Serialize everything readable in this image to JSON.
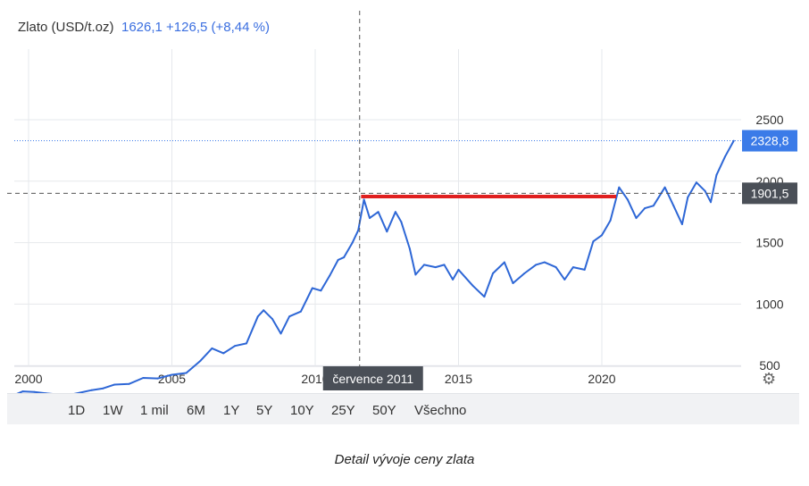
{
  "header": {
    "title": "Zlato (USD/t.oz)",
    "stats": "1626,1 +126,5 (+8,44 %)"
  },
  "crosshair": {
    "date_label": "července 2011",
    "price_label": "1901,5",
    "price_value": 1901.5,
    "x_value": 2011.55
  },
  "last_price": {
    "label": "2328,8",
    "value": 2328.8
  },
  "highlight_line": {
    "x_start": 2011.6,
    "x_end": 2020.5,
    "y": 1875,
    "color": "#e02020"
  },
  "ranges": [
    "1D",
    "1W",
    "1 mil",
    "6M",
    "1Y",
    "5Y",
    "10Y",
    "25Y",
    "50Y",
    "Všechno"
  ],
  "caption": "Detail vývoje ceny zlata",
  "colors": {
    "line": "#2e67d6",
    "last_bg": "#3b7be8",
    "crosshair_bg": "#4a4f57"
  },
  "icons": {
    "settings": "gear-icon"
  },
  "chart_data": {
    "type": "line",
    "title": "Zlato (USD/t.oz)",
    "xlabel": "",
    "ylabel": "",
    "xlim": [
      1999.5,
      2024.9
    ],
    "ylim": [
      0,
      2500
    ],
    "x_ticks": [
      2000,
      2005,
      2010,
      2015,
      2020
    ],
    "x_tick_labels": [
      "2000",
      "2005",
      "2010",
      "2015",
      "2020"
    ],
    "y_ticks": [
      500,
      1000,
      1500,
      2000,
      2500
    ],
    "y_tick_labels": [
      "500",
      "1000",
      "1500",
      "2000",
      "2500"
    ],
    "grid": true,
    "series": [
      {
        "values": [
          [
            1999.5,
            260
          ],
          [
            1999.8,
            290
          ],
          [
            2000.2,
            285
          ],
          [
            2000.6,
            275
          ],
          [
            2001.0,
            265
          ],
          [
            2001.4,
            260
          ],
          [
            2001.8,
            280
          ],
          [
            2002.2,
            300
          ],
          [
            2002.6,
            315
          ],
          [
            2003.0,
            345
          ],
          [
            2003.5,
            350
          ],
          [
            2004.0,
            400
          ],
          [
            2004.5,
            395
          ],
          [
            2005.0,
            425
          ],
          [
            2005.5,
            440
          ],
          [
            2006.0,
            540
          ],
          [
            2006.4,
            640
          ],
          [
            2006.8,
            600
          ],
          [
            2007.2,
            660
          ],
          [
            2007.6,
            680
          ],
          [
            2008.0,
            900
          ],
          [
            2008.2,
            950
          ],
          [
            2008.5,
            880
          ],
          [
            2008.8,
            760
          ],
          [
            2009.1,
            900
          ],
          [
            2009.5,
            940
          ],
          [
            2009.9,
            1130
          ],
          [
            2010.2,
            1110
          ],
          [
            2010.5,
            1230
          ],
          [
            2010.8,
            1360
          ],
          [
            2011.0,
            1380
          ],
          [
            2011.3,
            1500
          ],
          [
            2011.5,
            1600
          ],
          [
            2011.7,
            1850
          ],
          [
            2011.9,
            1700
          ],
          [
            2012.2,
            1750
          ],
          [
            2012.5,
            1590
          ],
          [
            2012.8,
            1750
          ],
          [
            2013.0,
            1670
          ],
          [
            2013.3,
            1450
          ],
          [
            2013.5,
            1240
          ],
          [
            2013.8,
            1320
          ],
          [
            2014.2,
            1300
          ],
          [
            2014.5,
            1320
          ],
          [
            2014.8,
            1200
          ],
          [
            2015.0,
            1280
          ],
          [
            2015.5,
            1150
          ],
          [
            2015.9,
            1060
          ],
          [
            2016.2,
            1250
          ],
          [
            2016.6,
            1340
          ],
          [
            2016.9,
            1170
          ],
          [
            2017.3,
            1250
          ],
          [
            2017.7,
            1320
          ],
          [
            2018.0,
            1340
          ],
          [
            2018.4,
            1300
          ],
          [
            2018.7,
            1200
          ],
          [
            2019.0,
            1300
          ],
          [
            2019.4,
            1280
          ],
          [
            2019.7,
            1510
          ],
          [
            2020.0,
            1560
          ],
          [
            2020.3,
            1680
          ],
          [
            2020.6,
            1950
          ],
          [
            2020.9,
            1850
          ],
          [
            2021.2,
            1700
          ],
          [
            2021.5,
            1780
          ],
          [
            2021.8,
            1800
          ],
          [
            2022.2,
            1950
          ],
          [
            2022.5,
            1800
          ],
          [
            2022.8,
            1650
          ],
          [
            2023.0,
            1870
          ],
          [
            2023.3,
            1990
          ],
          [
            2023.6,
            1920
          ],
          [
            2023.8,
            1830
          ],
          [
            2024.0,
            2050
          ],
          [
            2024.3,
            2200
          ],
          [
            2024.6,
            2328.8
          ]
        ]
      }
    ]
  }
}
